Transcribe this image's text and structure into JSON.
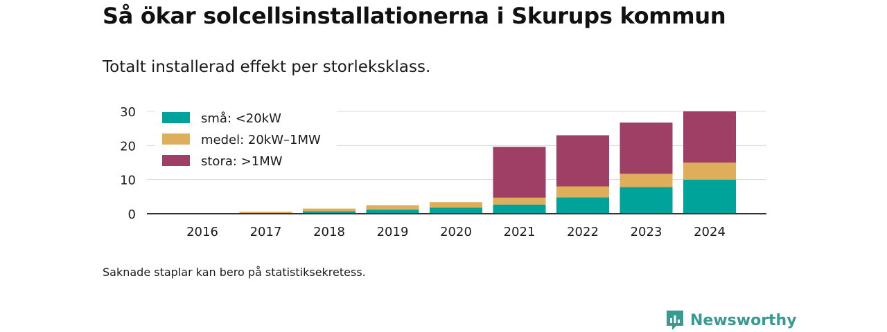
{
  "title": "Så ökar solcellsinstallationerna i Skurups kommun",
  "subtitle": "Totalt installerad effekt per storleksklass.",
  "footnote": "Saknade staplar kan bero på statistiksekretess.",
  "brand": {
    "name": "Newsworthy",
    "icon": "newsworthy-logo-icon",
    "color": "#3a9a91"
  },
  "chart_data": {
    "type": "bar",
    "stacked": true,
    "categories": [
      "2016",
      "2017",
      "2018",
      "2019",
      "2020",
      "2021",
      "2022",
      "2023",
      "2024"
    ],
    "series": [
      {
        "name": "små: <20kW",
        "color": "#00a39a",
        "values": [
          0,
          0.2,
          0.7,
          1.2,
          1.8,
          2.7,
          4.8,
          7.8,
          10.0
        ]
      },
      {
        "name": "medel: 20kW–1MW",
        "color": "#dfae5a",
        "values": [
          0,
          0.4,
          0.8,
          1.3,
          1.6,
          2.0,
          3.2,
          3.9,
          5.0
        ]
      },
      {
        "name": "stora: >1MW",
        "color": "#a03f66",
        "values": [
          0,
          0,
          0,
          0,
          0,
          14.9,
          15.0,
          15.0,
          15.0
        ]
      }
    ],
    "yticks": [
      0,
      10,
      20,
      30
    ],
    "ylim": [
      0,
      30
    ],
    "grid": true,
    "legend_position": "top-left"
  }
}
